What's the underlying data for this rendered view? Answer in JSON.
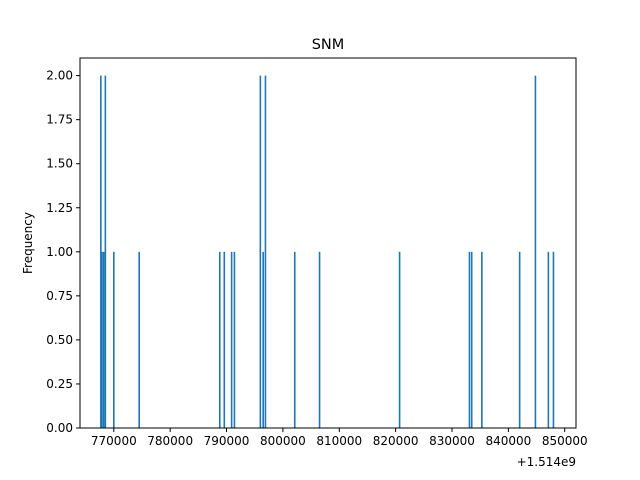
{
  "chart_data": {
    "type": "bar",
    "title": "SNM",
    "xlabel": "",
    "ylabel": "Frequency",
    "x_offset_label": "+1.514e9",
    "xlim": [
      764000,
      852000
    ],
    "ylim": [
      0,
      2.1
    ],
    "xticks": [
      "770000",
      "780000",
      "790000",
      "800000",
      "810000",
      "820000",
      "830000",
      "840000",
      "850000"
    ],
    "yticks": [
      "0.00",
      "0.25",
      "0.50",
      "0.75",
      "1.00",
      "1.25",
      "1.50",
      "1.75",
      "2.00"
    ],
    "bar_color": "#1f77b4",
    "grid": false,
    "x": [
      767700,
      767900,
      768200,
      768500,
      770000,
      774500,
      788800,
      789600,
      790900,
      791400,
      796000,
      796500,
      796900,
      802100,
      806500,
      820700,
      833100,
      833500,
      835300,
      842000,
      844800,
      847100,
      848000
    ],
    "values": [
      2,
      1,
      1,
      2,
      1,
      1,
      1,
      1,
      1,
      1,
      2,
      1,
      2,
      1,
      1,
      1,
      1,
      1,
      1,
      1,
      2,
      1,
      1
    ]
  }
}
